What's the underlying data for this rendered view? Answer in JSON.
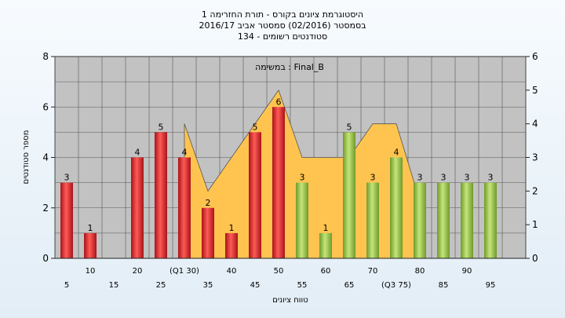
{
  "chart_data": {
    "type": "bar",
    "title_lines": [
      "היסטוגרמת ציונים בקורס - תורת החזרימה 1",
      "בסמסטר  (02/2016)  סמסטר אביב 2016/17",
      "סטודנטים רשומים - 134"
    ],
    "inner_title": "במשימה : Final_B",
    "xlabel": "טווח ציונים",
    "ylabel": "מספר סטודנטים",
    "ylim": [
      0,
      8
    ],
    "y2lim": [
      0,
      6
    ],
    "y_ticks": [
      "0",
      "2",
      "4",
      "6",
      "8"
    ],
    "y2_ticks": [
      "0",
      "1",
      "2",
      "3",
      "4",
      "5",
      "6"
    ],
    "categories": [
      5,
      10,
      15,
      20,
      25,
      30,
      35,
      40,
      45,
      50,
      55,
      60,
      65,
      70,
      75,
      80,
      85,
      90,
      95
    ],
    "x_tick_labels_top": [
      "10",
      "20",
      "(Q1 30)",
      "40",
      "50",
      "60",
      "70",
      "80",
      "90"
    ],
    "x_tick_labels_bottom": [
      "5",
      "15",
      "25",
      "35",
      "45",
      "55",
      "65",
      "(Q3 75)",
      "85",
      "95"
    ],
    "values": [
      3,
      1,
      0,
      4,
      5,
      4,
      2,
      1,
      5,
      6,
      3,
      1,
      5,
      3,
      4,
      3,
      3,
      3,
      3
    ],
    "bar_colors": [
      "red",
      "red",
      "red",
      "red",
      "red",
      "red",
      "red",
      "red",
      "red",
      "red",
      "green",
      "green",
      "green",
      "green",
      "green",
      "green",
      "green",
      "green",
      "green"
    ],
    "area_values": [
      0,
      0,
      0,
      0,
      0,
      4,
      2,
      3,
      4,
      5,
      3,
      3,
      3,
      4,
      4,
      1.7,
      0,
      0,
      0
    ],
    "grid": true,
    "colors": {
      "red": "#e0282a",
      "green": "#9cc84a",
      "area": "#ffc44f",
      "plot_bg": "#c2c2c2",
      "grid": "#555555"
    }
  }
}
